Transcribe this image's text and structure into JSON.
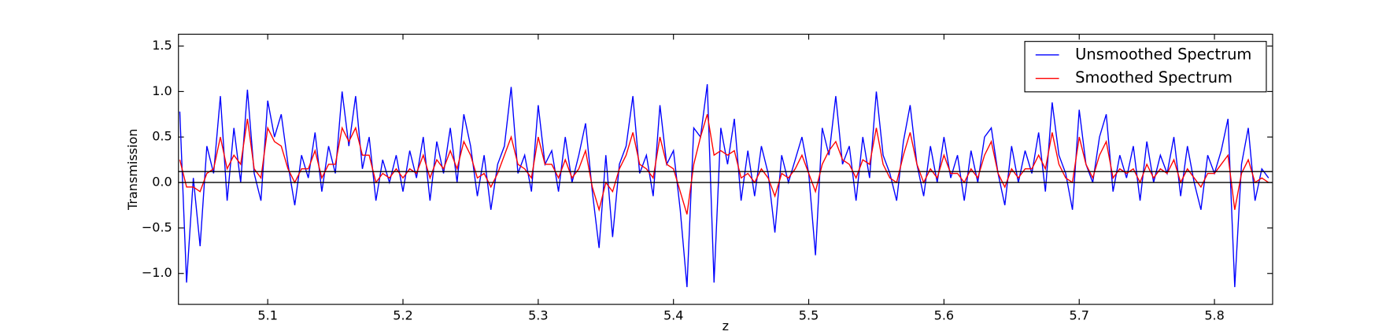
{
  "chart_data": {
    "type": "line",
    "xlabel": "z",
    "ylabel": "Transmission",
    "x": [
      5.035,
      5.04,
      5.045,
      5.05,
      5.055,
      5.06,
      5.065,
      5.07,
      5.075,
      5.08,
      5.085,
      5.09,
      5.095,
      5.1,
      5.105,
      5.11,
      5.115,
      5.12,
      5.125,
      5.13,
      5.135,
      5.14,
      5.145,
      5.15,
      5.155,
      5.16,
      5.165,
      5.17,
      5.175,
      5.18,
      5.185,
      5.19,
      5.195,
      5.2,
      5.205,
      5.21,
      5.215,
      5.22,
      5.225,
      5.23,
      5.235,
      5.24,
      5.245,
      5.25,
      5.255,
      5.26,
      5.265,
      5.27,
      5.275,
      5.28,
      5.285,
      5.29,
      5.295,
      5.3,
      5.305,
      5.31,
      5.315,
      5.32,
      5.325,
      5.33,
      5.335,
      5.34,
      5.345,
      5.35,
      5.355,
      5.36,
      5.365,
      5.37,
      5.375,
      5.38,
      5.385,
      5.39,
      5.395,
      5.4,
      5.405,
      5.41,
      5.415,
      5.42,
      5.425,
      5.43,
      5.435,
      5.44,
      5.445,
      5.45,
      5.455,
      5.46,
      5.465,
      5.47,
      5.475,
      5.48,
      5.485,
      5.49,
      5.495,
      5.5,
      5.505,
      5.51,
      5.515,
      5.52,
      5.525,
      5.53,
      5.535,
      5.54,
      5.545,
      5.55,
      5.555,
      5.56,
      5.565,
      5.57,
      5.575,
      5.58,
      5.585,
      5.59,
      5.595,
      5.6,
      5.605,
      5.61,
      5.615,
      5.62,
      5.625,
      5.63,
      5.635,
      5.64,
      5.645,
      5.65,
      5.655,
      5.66,
      5.665,
      5.67,
      5.675,
      5.68,
      5.685,
      5.69,
      5.695,
      5.7,
      5.705,
      5.71,
      5.715,
      5.72,
      5.725,
      5.73,
      5.735,
      5.74,
      5.745,
      5.75,
      5.755,
      5.76,
      5.765,
      5.77,
      5.775,
      5.78,
      5.785,
      5.79,
      5.795,
      5.8,
      5.805,
      5.81,
      5.815,
      5.82,
      5.825,
      5.83,
      5.835,
      5.84
    ],
    "series": [
      {
        "name": "Unsmoothed Spectrum",
        "color": "#0000ff",
        "values": [
          0.78,
          -1.1,
          0.05,
          -0.7,
          0.4,
          0.1,
          0.95,
          -0.2,
          0.6,
          0.0,
          1.02,
          0.1,
          -0.2,
          0.9,
          0.5,
          0.75,
          0.2,
          -0.25,
          0.3,
          0.05,
          0.55,
          -0.1,
          0.4,
          0.1,
          1.0,
          0.4,
          0.95,
          0.15,
          0.5,
          -0.2,
          0.25,
          0.0,
          0.3,
          -0.1,
          0.35,
          0.05,
          0.5,
          -0.2,
          0.45,
          0.1,
          0.6,
          0.0,
          0.75,
          0.4,
          -0.15,
          0.3,
          -0.3,
          0.2,
          0.4,
          1.05,
          0.1,
          0.3,
          -0.1,
          0.85,
          0.2,
          0.35,
          -0.1,
          0.5,
          0.0,
          0.3,
          0.65,
          -0.1,
          -0.72,
          0.3,
          -0.6,
          0.2,
          0.4,
          0.95,
          0.1,
          0.3,
          -0.15,
          0.85,
          0.2,
          0.35,
          -0.3,
          -1.15,
          0.6,
          0.5,
          1.08,
          -1.1,
          0.6,
          0.2,
          0.7,
          -0.2,
          0.35,
          -0.15,
          0.4,
          0.1,
          -0.55,
          0.3,
          0.0,
          0.25,
          0.5,
          0.1,
          -0.8,
          0.6,
          0.3,
          0.95,
          0.2,
          0.4,
          -0.2,
          0.5,
          0.05,
          1.0,
          0.3,
          0.1,
          -0.2,
          0.45,
          0.85,
          0.2,
          -0.15,
          0.4,
          0.0,
          0.5,
          0.05,
          0.3,
          -0.2,
          0.35,
          0.0,
          0.5,
          0.6,
          0.1,
          -0.25,
          0.4,
          0.0,
          0.35,
          0.1,
          0.55,
          -0.1,
          0.88,
          0.3,
          0.1,
          -0.3,
          0.8,
          0.2,
          0.0,
          0.5,
          0.75,
          -0.1,
          0.3,
          0.05,
          0.4,
          -0.2,
          0.45,
          0.0,
          0.3,
          0.1,
          0.5,
          -0.15,
          0.4,
          0.0,
          -0.3,
          0.3,
          0.1,
          0.35,
          0.7,
          -1.15,
          0.2,
          0.6,
          -0.2,
          0.15,
          0.05
        ]
      },
      {
        "name": "Smoothed Spectrum",
        "color": "#ff0000",
        "values": [
          0.25,
          -0.05,
          -0.05,
          -0.1,
          0.1,
          0.15,
          0.5,
          0.15,
          0.3,
          0.2,
          0.7,
          0.15,
          0.05,
          0.6,
          0.45,
          0.4,
          0.15,
          0.0,
          0.15,
          0.15,
          0.35,
          0.05,
          0.2,
          0.2,
          0.6,
          0.45,
          0.6,
          0.3,
          0.3,
          0.0,
          0.1,
          0.05,
          0.15,
          0.05,
          0.15,
          0.1,
          0.3,
          0.05,
          0.25,
          0.15,
          0.35,
          0.15,
          0.45,
          0.3,
          0.05,
          0.1,
          -0.05,
          0.1,
          0.3,
          0.5,
          0.2,
          0.15,
          0.05,
          0.5,
          0.2,
          0.2,
          0.05,
          0.25,
          0.05,
          0.15,
          0.35,
          -0.05,
          -0.3,
          0.0,
          -0.1,
          0.15,
          0.3,
          0.55,
          0.2,
          0.15,
          0.05,
          0.5,
          0.2,
          0.15,
          -0.1,
          -0.35,
          0.2,
          0.5,
          0.75,
          0.3,
          0.35,
          0.3,
          0.35,
          0.05,
          0.1,
          0.0,
          0.15,
          0.05,
          -0.15,
          0.1,
          0.05,
          0.15,
          0.3,
          0.1,
          -0.1,
          0.2,
          0.35,
          0.45,
          0.25,
          0.2,
          0.05,
          0.25,
          0.2,
          0.6,
          0.2,
          0.05,
          0.0,
          0.3,
          0.55,
          0.2,
          0.0,
          0.15,
          0.05,
          0.3,
          0.1,
          0.1,
          0.0,
          0.15,
          0.05,
          0.3,
          0.45,
          0.1,
          -0.05,
          0.15,
          0.05,
          0.15,
          0.15,
          0.3,
          0.15,
          0.55,
          0.2,
          0.05,
          0.0,
          0.5,
          0.2,
          0.05,
          0.3,
          0.45,
          0.05,
          0.15,
          0.1,
          0.15,
          0.0,
          0.2,
          0.05,
          0.15,
          0.1,
          0.25,
          0.0,
          0.15,
          0.05,
          -0.05,
          0.1,
          0.1,
          0.2,
          0.3,
          -0.3,
          0.1,
          0.25,
          0.0,
          0.05,
          0.0
        ]
      }
    ],
    "hlines": [
      0,
      0.12
    ],
    "xlim": [
      5.034,
      5.843
    ],
    "xticks": [
      5.1,
      5.2,
      5.3,
      5.4,
      5.5,
      5.6,
      5.7,
      5.8
    ],
    "ylim": [
      -1.34,
      1.63
    ],
    "yticks": [
      {
        "value": -1,
        "label": "−1.0"
      },
      {
        "value": -0.5,
        "label": "−0.5"
      },
      {
        "value": 0,
        "label": "0.0"
      },
      0.5,
      {
        "value": 1,
        "label": "1.0"
      },
      1.5
    ],
    "legend": "upper right"
  }
}
